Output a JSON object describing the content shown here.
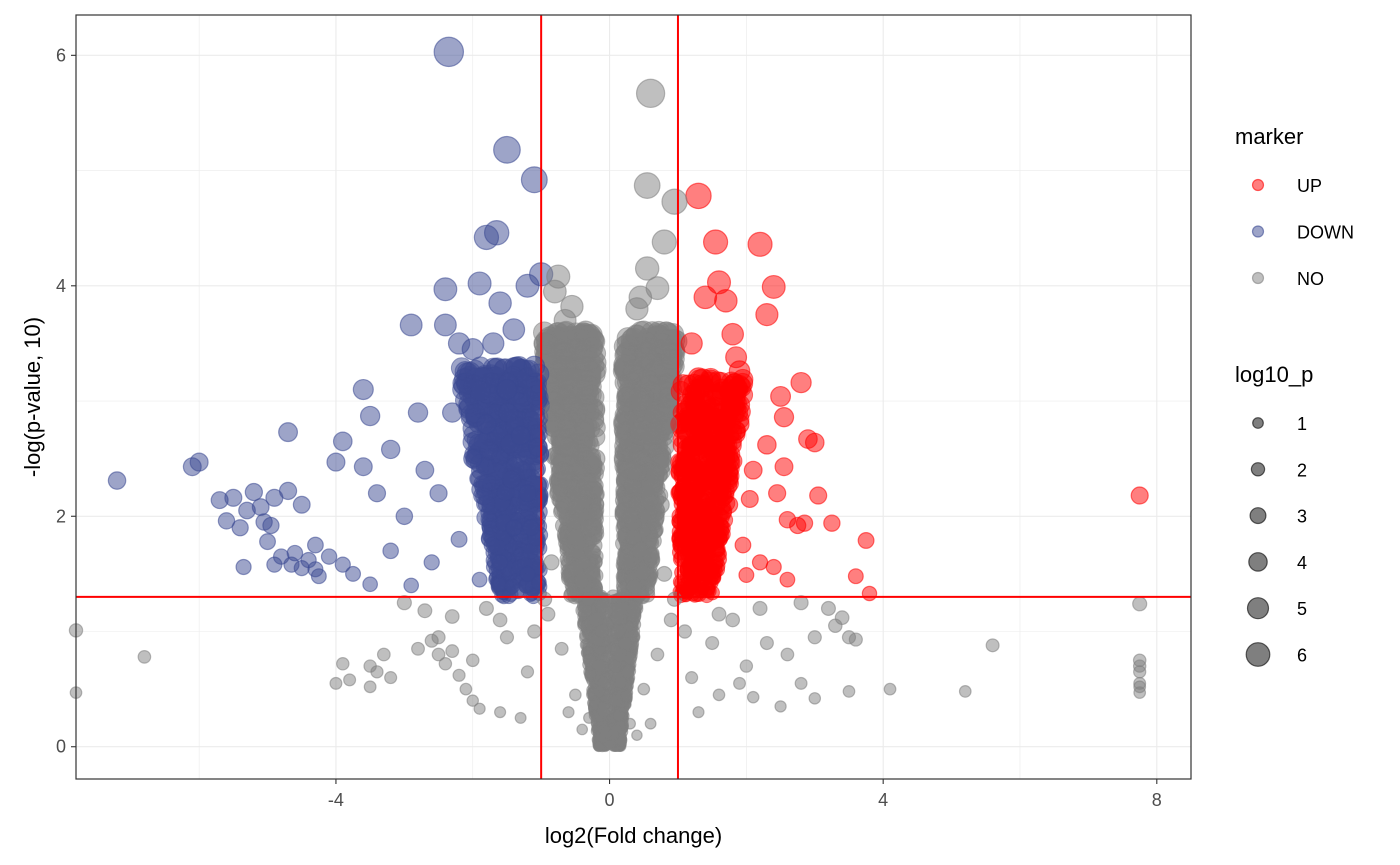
{
  "chart_data": {
    "type": "scatter",
    "xlabel": "log2(Fold change)",
    "ylabel": "-log(p-value, 10)",
    "xlim": [
      -7.8,
      8.5
    ],
    "ylim": [
      -0.28,
      6.35
    ],
    "x_ticks": [
      -4,
      0,
      4,
      8
    ],
    "x_tick_labels": [
      "-4",
      "0",
      "4",
      "8"
    ],
    "y_ticks": [
      0,
      2,
      4,
      6
    ],
    "y_tick_labels": [
      "0",
      "2",
      "4",
      "6"
    ],
    "grid": true,
    "thresholds": {
      "x": [
        -1,
        1
      ],
      "y": 1.3,
      "color": "#FF0000"
    },
    "series": [
      {
        "name": "UP",
        "color": "#FF0000",
        "points": [
          [
            1.3,
            4.78
          ],
          [
            1.55,
            4.38
          ],
          [
            2.2,
            4.36
          ],
          [
            2.4,
            3.99
          ],
          [
            1.6,
            4.03
          ],
          [
            1.7,
            3.87
          ],
          [
            1.4,
            3.9
          ],
          [
            2.3,
            3.75
          ],
          [
            1.8,
            3.58
          ],
          [
            1.85,
            3.38
          ],
          [
            1.9,
            3.26
          ],
          [
            2.8,
            3.16
          ],
          [
            2.5,
            3.04
          ],
          [
            2.55,
            2.86
          ],
          [
            2.9,
            2.67
          ],
          [
            3.0,
            2.64
          ],
          [
            2.3,
            2.62
          ],
          [
            2.55,
            2.43
          ],
          [
            2.45,
            2.2
          ],
          [
            3.05,
            2.18
          ],
          [
            2.85,
            1.94
          ],
          [
            2.75,
            1.92
          ],
          [
            3.25,
            1.94
          ],
          [
            3.75,
            1.79
          ],
          [
            2.6,
            1.97
          ],
          [
            2.4,
            1.56
          ],
          [
            2.2,
            1.6
          ],
          [
            2.0,
            1.49
          ],
          [
            2.6,
            1.45
          ],
          [
            3.6,
            1.48
          ],
          [
            3.8,
            1.33
          ],
          [
            7.75,
            2.18
          ],
          [
            1.2,
            3.5
          ],
          [
            1.3,
            3.2
          ],
          [
            1.4,
            2.9
          ],
          [
            1.2,
            2.6
          ],
          [
            1.5,
            2.3
          ],
          [
            1.3,
            2.0
          ],
          [
            1.6,
            1.8
          ],
          [
            1.2,
            1.5
          ],
          [
            1.1,
            1.4
          ],
          [
            1.4,
            1.6
          ],
          [
            1.7,
            2.5
          ],
          [
            1.9,
            2.8
          ],
          [
            2.1,
            2.4
          ],
          [
            1.75,
            2.1
          ],
          [
            1.95,
            1.75
          ],
          [
            2.05,
            2.15
          ]
        ]
      },
      {
        "name": "DOWN",
        "color": "#3B4992",
        "points": [
          [
            -2.35,
            6.03
          ],
          [
            -1.5,
            5.18
          ],
          [
            -1.1,
            4.92
          ],
          [
            -1.8,
            4.42
          ],
          [
            -1.65,
            4.46
          ],
          [
            -1.0,
            4.1
          ],
          [
            -1.2,
            4.0
          ],
          [
            -2.4,
            3.97
          ],
          [
            -1.9,
            4.02
          ],
          [
            -1.6,
            3.85
          ],
          [
            -2.4,
            3.66
          ],
          [
            -2.9,
            3.66
          ],
          [
            -2.2,
            3.5
          ],
          [
            -2.0,
            3.45
          ],
          [
            -1.7,
            3.5
          ],
          [
            -1.4,
            3.62
          ],
          [
            -3.6,
            3.1
          ],
          [
            -2.8,
            2.9
          ],
          [
            -3.5,
            2.87
          ],
          [
            -4.7,
            2.73
          ],
          [
            -3.9,
            2.65
          ],
          [
            -3.6,
            2.43
          ],
          [
            -4.0,
            2.47
          ],
          [
            -3.2,
            2.58
          ],
          [
            -6.0,
            2.47
          ],
          [
            -6.1,
            2.43
          ],
          [
            -7.2,
            2.31
          ],
          [
            -5.5,
            2.16
          ],
          [
            -5.7,
            2.14
          ],
          [
            -5.2,
            2.21
          ],
          [
            -4.7,
            2.22
          ],
          [
            -4.9,
            2.16
          ],
          [
            -4.5,
            2.1
          ],
          [
            -5.1,
            2.08
          ],
          [
            -5.3,
            2.05
          ],
          [
            -5.6,
            1.96
          ],
          [
            -5.05,
            1.95
          ],
          [
            -4.95,
            1.92
          ],
          [
            -5.4,
            1.9
          ],
          [
            -5.0,
            1.78
          ],
          [
            -4.3,
            1.75
          ],
          [
            -4.1,
            1.65
          ],
          [
            -4.6,
            1.68
          ],
          [
            -4.4,
            1.62
          ],
          [
            -4.8,
            1.65
          ],
          [
            -4.9,
            1.58
          ],
          [
            -4.65,
            1.58
          ],
          [
            -4.5,
            1.55
          ],
          [
            -4.3,
            1.54
          ],
          [
            -5.35,
            1.56
          ],
          [
            -4.25,
            1.48
          ],
          [
            -3.9,
            1.58
          ],
          [
            -3.75,
            1.5
          ],
          [
            -3.5,
            1.41
          ],
          [
            -2.9,
            1.4
          ],
          [
            -3.2,
            1.7
          ],
          [
            -3.0,
            2.0
          ],
          [
            -2.5,
            2.2
          ],
          [
            -2.0,
            2.5
          ],
          [
            -1.8,
            2.8
          ],
          [
            -1.5,
            3.1
          ],
          [
            -1.3,
            2.7
          ],
          [
            -1.2,
            2.2
          ],
          [
            -1.4,
            1.9
          ],
          [
            -1.6,
            1.6
          ],
          [
            -1.2,
            1.5
          ],
          [
            -2.2,
            1.8
          ],
          [
            -2.6,
            1.6
          ],
          [
            -1.9,
            1.45
          ],
          [
            -3.4,
            2.2
          ],
          [
            -2.7,
            2.4
          ],
          [
            -2.3,
            2.9
          ],
          [
            -1.1,
            3.3
          ],
          [
            -1.05,
            2.6
          ],
          [
            -1.15,
            1.9
          ]
        ]
      },
      {
        "name": "NO",
        "color": "#808080",
        "points": [
          [
            0.6,
            5.67
          ],
          [
            0.55,
            4.87
          ],
          [
            0.95,
            4.73
          ],
          [
            0.8,
            4.38
          ],
          [
            0.55,
            4.15
          ],
          [
            0.7,
            3.98
          ],
          [
            -0.75,
            4.08
          ],
          [
            -0.8,
            3.95
          ],
          [
            -0.55,
            3.82
          ],
          [
            0.4,
            3.8
          ],
          [
            0.5,
            3.6
          ],
          [
            0.6,
            3.35
          ],
          [
            -0.5,
            3.45
          ],
          [
            -0.6,
            3.2
          ],
          [
            -0.45,
            2.9
          ],
          [
            -0.6,
            2.6
          ],
          [
            0.45,
            3.0
          ],
          [
            0.6,
            2.7
          ],
          [
            0.35,
            2.4
          ],
          [
            -0.35,
            2.3
          ],
          [
            0.3,
            2.0
          ],
          [
            -0.3,
            1.9
          ],
          [
            0.25,
            1.6
          ],
          [
            -0.25,
            1.5
          ],
          [
            0.2,
            1.2
          ],
          [
            -0.2,
            1.1
          ],
          [
            0.15,
            0.8
          ],
          [
            -0.15,
            0.7
          ],
          [
            0.1,
            0.4
          ],
          [
            -0.1,
            0.3
          ],
          [
            0.0,
            0.02
          ],
          [
            0.05,
            0.1
          ],
          [
            -0.05,
            0.12
          ],
          [
            0.3,
            0.2
          ],
          [
            -0.3,
            0.25
          ],
          [
            0.5,
            0.5
          ],
          [
            -0.5,
            0.45
          ],
          [
            0.7,
            0.8
          ],
          [
            -0.7,
            0.85
          ],
          [
            0.9,
            1.1
          ],
          [
            -0.9,
            1.15
          ],
          [
            0.8,
            1.5
          ],
          [
            -0.85,
            1.6
          ],
          [
            0.75,
            2.1
          ],
          [
            -0.75,
            2.2
          ],
          [
            0.85,
            2.8
          ],
          [
            -0.8,
            2.9
          ],
          [
            0.9,
            3.3
          ],
          [
            -0.95,
            3.5
          ],
          [
            0.4,
            0.1
          ],
          [
            -0.4,
            0.15
          ],
          [
            0.6,
            0.2
          ],
          [
            -0.6,
            0.3
          ],
          [
            1.2,
            0.6
          ],
          [
            -1.2,
            0.65
          ],
          [
            1.5,
            0.9
          ],
          [
            -1.5,
            0.95
          ],
          [
            1.8,
            1.1
          ],
          [
            -1.8,
            1.2
          ],
          [
            2.0,
            0.7
          ],
          [
            -2.0,
            0.75
          ],
          [
            2.3,
            0.9
          ],
          [
            -2.5,
            0.95
          ],
          [
            2.6,
            0.8
          ],
          [
            -2.8,
            0.85
          ],
          [
            3.0,
            0.95
          ],
          [
            -3.2,
            0.6
          ],
          [
            3.3,
            1.05
          ],
          [
            -3.5,
            0.7
          ],
          [
            3.5,
            0.95
          ],
          [
            -3.8,
            0.58
          ],
          [
            3.2,
            1.2
          ],
          [
            3.4,
            1.12
          ],
          [
            3.6,
            0.93
          ],
          [
            4.1,
            0.5
          ],
          [
            5.2,
            0.48
          ],
          [
            5.6,
            0.88
          ],
          [
            7.75,
            1.24
          ],
          [
            7.75,
            0.75
          ],
          [
            7.75,
            0.7
          ],
          [
            7.75,
            0.65
          ],
          [
            7.75,
            0.55
          ],
          [
            7.75,
            0.52
          ],
          [
            7.75,
            0.47
          ],
          [
            -6.8,
            0.78
          ],
          [
            -7.8,
            1.01
          ],
          [
            -7.8,
            0.47
          ],
          [
            -4.0,
            0.55
          ],
          [
            -3.9,
            0.72
          ],
          [
            -3.4,
            0.65
          ],
          [
            -3.5,
            0.52
          ],
          [
            -3.3,
            0.8
          ],
          [
            -2.4,
            0.72
          ],
          [
            -2.5,
            0.8
          ],
          [
            -2.3,
            0.83
          ],
          [
            -2.6,
            0.92
          ],
          [
            -2.2,
            0.62
          ],
          [
            -2.1,
            0.5
          ],
          [
            -2.0,
            0.4
          ],
          [
            -1.9,
            0.33
          ],
          [
            -1.6,
            0.3
          ],
          [
            -1.3,
            0.25
          ],
          [
            1.3,
            0.3
          ],
          [
            1.6,
            0.45
          ],
          [
            1.9,
            0.55
          ],
          [
            2.1,
            0.43
          ],
          [
            2.5,
            0.35
          ],
          [
            2.8,
            0.55
          ],
          [
            3.0,
            0.42
          ],
          [
            3.5,
            0.48
          ],
          [
            -1.6,
            1.1
          ],
          [
            -2.3,
            1.13
          ],
          [
            -2.7,
            1.18
          ],
          [
            -3.0,
            1.25
          ],
          [
            1.6,
            1.15
          ],
          [
            2.2,
            1.2
          ],
          [
            2.8,
            1.25
          ],
          [
            -0.95,
            1.28
          ],
          [
            0.95,
            1.28
          ],
          [
            1.1,
            1.0
          ],
          [
            -1.1,
            1.0
          ],
          [
            0.2,
            2.8
          ],
          [
            -0.2,
            2.5
          ],
          [
            0.45,
            3.9
          ],
          [
            -0.35,
            3.6
          ],
          [
            0.55,
            3.5
          ],
          [
            -0.65,
            3.7
          ]
        ]
      }
    ],
    "legend_marker": {
      "title": "marker",
      "entries": [
        "UP",
        "DOWN",
        "NO"
      ],
      "colors": [
        "#FF0000",
        "#3B4992",
        "#808080"
      ]
    },
    "legend_size": {
      "title": "log10_p",
      "entries": [
        "1",
        "2",
        "3",
        "4",
        "5",
        "6"
      ]
    },
    "legend_position": "right"
  }
}
